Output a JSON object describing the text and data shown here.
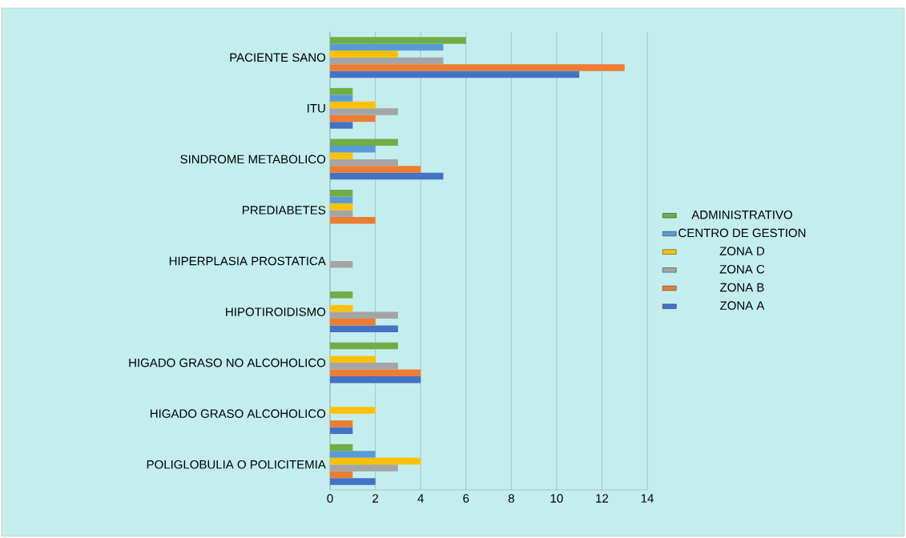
{
  "chart_data": {
    "type": "bar",
    "orientation": "horizontal",
    "categories": [
      "PACIENTE SANO",
      "ITU",
      "SINDROME METABOLICO",
      "PREDIABETES",
      "HIPERPLASIA PROSTATICA",
      "HIPOTIROIDISMO",
      "HIGADO GRASO NO ALCOHOLICO",
      "HIGADO GRASO ALCOHOLICO",
      "POLIGLOBULIA O POLICITEMIA"
    ],
    "series": [
      {
        "name": "ZONA A",
        "color": "#4472c4",
        "values": [
          11,
          1,
          5,
          0,
          0,
          3,
          4,
          1,
          2
        ]
      },
      {
        "name": "ZONA B",
        "color": "#ed7d31",
        "values": [
          13,
          2,
          4,
          2,
          0,
          2,
          4,
          1,
          1
        ]
      },
      {
        "name": "ZONA C",
        "color": "#a5a5a5",
        "values": [
          5,
          3,
          3,
          1,
          1,
          3,
          3,
          0,
          3
        ]
      },
      {
        "name": "ZONA D",
        "color": "#ffc000",
        "values": [
          3,
          2,
          1,
          1,
          0,
          1,
          2,
          2,
          4
        ]
      },
      {
        "name": "CENTRO DE GESTION",
        "color": "#5b9bd5",
        "values": [
          5,
          1,
          2,
          1,
          0,
          0,
          0,
          0,
          2
        ]
      },
      {
        "name": "ADMINISTRATIVO",
        "color": "#70ad47",
        "values": [
          6,
          1,
          3,
          1,
          0,
          1,
          3,
          0,
          1
        ]
      }
    ],
    "xlim": [
      0,
      14
    ],
    "xticks": [
      0,
      2,
      4,
      6,
      8,
      10,
      12,
      14
    ],
    "grid": "x",
    "legend": "right"
  }
}
